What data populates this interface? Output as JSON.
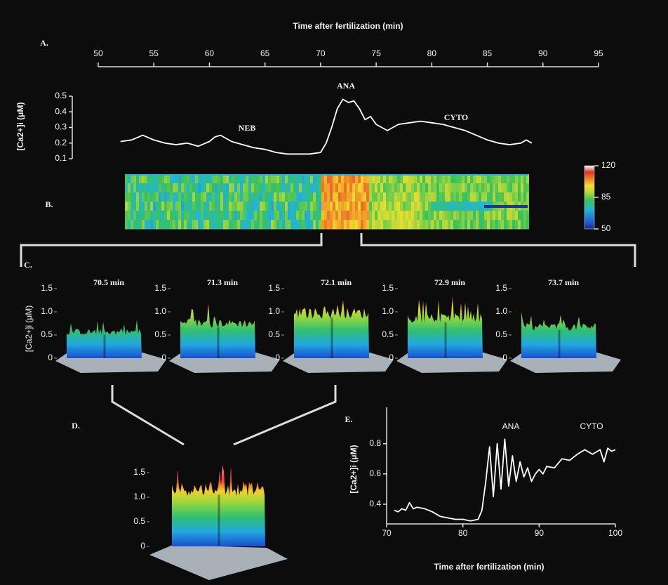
{
  "chart_data": [
    {
      "type": "line",
      "panel_label": "A.",
      "xlabel": "Time after fertilization (min)",
      "ylabel": "[Ca2+]i (μM)",
      "xlim": [
        50,
        95
      ],
      "xticks": [
        50,
        55,
        60,
        65,
        70,
        75,
        80,
        85,
        90,
        95
      ],
      "ylim": [
        0.1,
        0.5
      ],
      "yticks": [
        0.1,
        0.2,
        0.3,
        0.4,
        0.5
      ],
      "color": "#ffffff",
      "x": [
        52,
        53,
        54,
        55,
        56,
        57,
        58,
        59,
        60,
        60.5,
        61,
        62,
        63,
        64,
        65,
        66,
        67,
        68,
        69,
        70,
        70.5,
        71,
        71.5,
        72,
        72.5,
        73,
        73.5,
        74,
        74.5,
        75,
        76,
        77,
        78,
        79,
        80,
        81,
        82,
        83,
        84,
        85,
        86,
        87,
        88,
        88.5,
        89
      ],
      "values": [
        0.21,
        0.22,
        0.25,
        0.22,
        0.2,
        0.19,
        0.2,
        0.18,
        0.21,
        0.24,
        0.25,
        0.21,
        0.19,
        0.17,
        0.16,
        0.14,
        0.13,
        0.13,
        0.13,
        0.14,
        0.2,
        0.3,
        0.42,
        0.48,
        0.46,
        0.47,
        0.42,
        0.35,
        0.37,
        0.32,
        0.28,
        0.32,
        0.33,
        0.34,
        0.33,
        0.32,
        0.3,
        0.28,
        0.25,
        0.22,
        0.2,
        0.19,
        0.2,
        0.22,
        0.2
      ],
      "annotations": [
        "NEB",
        "ANA",
        "CYTO"
      ]
    },
    {
      "type": "heatmap",
      "panel_label": "B.",
      "clim": [
        50,
        120
      ],
      "cticks": [
        50,
        85,
        120
      ]
    },
    {
      "type": "surface-set",
      "panel_label": "C.",
      "ylabel": "[Ca2+]i (μM)",
      "titles": [
        "70.5 min",
        "71.3 min",
        "72.1 min",
        "72.9 min",
        "73.7 min"
      ],
      "ylim": [
        0,
        1.5
      ],
      "yticks": [
        0,
        0.5,
        {
          "value": 1,
          "label": "1.0"
        },
        1.5
      ]
    },
    {
      "type": "surface",
      "panel_label": "D.",
      "ylim": [
        0,
        1.5
      ],
      "yticks": [
        0,
        0.5,
        {
          "value": 1,
          "label": "1.0"
        },
        1.5
      ]
    },
    {
      "type": "line",
      "panel_label": "E.",
      "xlabel": "Time after fertilization (min)",
      "ylabel": "[Ca2+]i (μM)",
      "xlim": [
        70,
        100
      ],
      "xticks": [
        70,
        80,
        90,
        100
      ],
      "ylim": [
        0.27,
        1.04
      ],
      "yticks": [
        0.4,
        0.6,
        0.8
      ],
      "color": "#ffffff",
      "x": [
        71,
        71.5,
        72,
        72.5,
        73,
        73.5,
        74,
        75,
        76,
        77,
        78,
        79,
        80,
        81,
        82,
        82.5,
        83,
        83.5,
        84,
        84.5,
        85,
        85.5,
        86,
        86.5,
        87,
        87.5,
        88,
        88.5,
        89,
        89.5,
        90,
        90.5,
        91,
        92,
        93,
        94,
        95,
        96,
        97,
        98,
        98.5,
        99,
        99.5,
        100
      ],
      "values": [
        0.36,
        0.35,
        0.37,
        0.36,
        0.41,
        0.37,
        0.38,
        0.37,
        0.35,
        0.32,
        0.31,
        0.3,
        0.3,
        0.29,
        0.3,
        0.36,
        0.55,
        0.78,
        0.45,
        0.8,
        0.5,
        0.83,
        0.52,
        0.72,
        0.55,
        0.68,
        0.58,
        0.64,
        0.55,
        0.6,
        0.63,
        0.6,
        0.65,
        0.64,
        0.7,
        0.69,
        0.73,
        0.76,
        0.73,
        0.76,
        0.68,
        0.77,
        0.75,
        0.76
      ],
      "annotations": [
        "ANA",
        "CYTO"
      ]
    }
  ]
}
